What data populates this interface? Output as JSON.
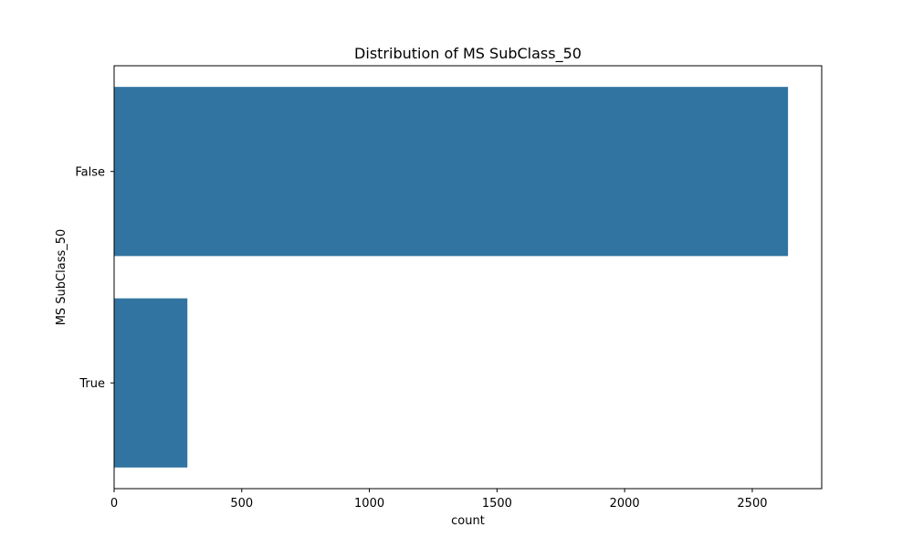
{
  "chart_data": {
    "type": "bar",
    "orientation": "horizontal",
    "title": "Distribution of MS SubClass_50",
    "xlabel": "count",
    "ylabel": "MS SubClass_50",
    "categories": [
      "False",
      "True"
    ],
    "values": [
      2640,
      287
    ],
    "xlim": [
      0,
      2772
    ],
    "xticks": [
      0,
      500,
      1000,
      1500,
      2000,
      2500
    ],
    "grid": false,
    "bar_color": "#3274a1"
  }
}
